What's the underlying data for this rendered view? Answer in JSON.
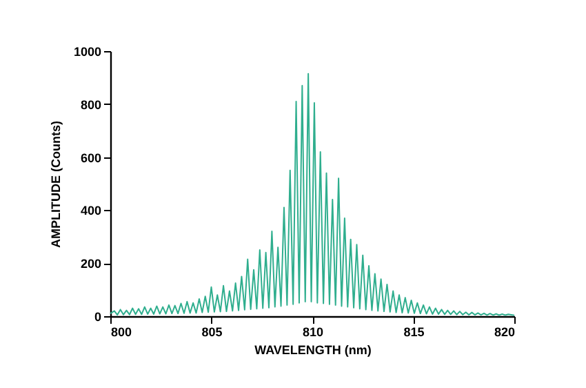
{
  "chart_data": {
    "type": "line",
    "xlabel": "WAVELENGTH (nm)",
    "ylabel": "AMPLITUDE (Counts)",
    "x": [
      800.0,
      800.2,
      800.35,
      800.5,
      800.65,
      800.8,
      800.95,
      801.1,
      801.25,
      801.4,
      801.55,
      801.7,
      801.85,
      802.0,
      802.15,
      802.3,
      802.45,
      802.6,
      802.75,
      802.9,
      803.05,
      803.2,
      803.35,
      803.5,
      803.65,
      803.8,
      803.95,
      804.1,
      804.25,
      804.4,
      804.55,
      804.7,
      804.85,
      805.0,
      805.15,
      805.3,
      805.45,
      805.6,
      805.75,
      805.9,
      806.05,
      806.2,
      806.35,
      806.5,
      806.65,
      806.8,
      806.95,
      807.1,
      807.25,
      807.4,
      807.55,
      807.7,
      807.85,
      808.0,
      808.15,
      808.3,
      808.45,
      808.6,
      808.75,
      808.9,
      809.05,
      809.2,
      809.35,
      809.5,
      809.65,
      809.8,
      809.95,
      810.1,
      810.25,
      810.4,
      810.55,
      810.7,
      810.85,
      811.0,
      811.15,
      811.3,
      811.45,
      811.6,
      811.75,
      811.9,
      812.05,
      812.2,
      812.35,
      812.5,
      812.65,
      812.8,
      812.95,
      813.1,
      813.25,
      813.4,
      813.55,
      813.7,
      813.85,
      814.0,
      814.15,
      814.3,
      814.45,
      814.6,
      814.75,
      814.9,
      815.05,
      815.2,
      815.35,
      815.5,
      815.65,
      815.8,
      815.95,
      816.1,
      816.25,
      816.4,
      816.55,
      816.7,
      816.85,
      817.0,
      817.15,
      817.3,
      817.45,
      817.6,
      817.75,
      817.9,
      818.05,
      818.2,
      818.35,
      818.5,
      818.65,
      818.8,
      818.95,
      819.1,
      819.25,
      819.4,
      819.55,
      819.7,
      820.0
    ],
    "series": [
      {
        "color": "#2fae8e",
        "values": [
          10,
          20,
          5,
          25,
          6,
          22,
          6,
          30,
          7,
          28,
          7,
          35,
          8,
          30,
          8,
          38,
          9,
          35,
          9,
          42,
          10,
          40,
          10,
          48,
          11,
          55,
          12,
          50,
          12,
          65,
          14,
          75,
          15,
          110,
          16,
          80,
          17,
          115,
          18,
          95,
          20,
          125,
          22,
          150,
          24,
          215,
          26,
          175,
          28,
          250,
          30,
          240,
          32,
          320,
          35,
          260,
          38,
          410,
          42,
          550,
          45,
          810,
          50,
          870,
          55,
          915,
          55,
          805,
          50,
          620,
          48,
          540,
          45,
          440,
          42,
          520,
          38,
          370,
          35,
          290,
          32,
          270,
          28,
          230,
          25,
          190,
          22,
          160,
          20,
          140,
          18,
          120,
          16,
          95,
          14,
          80,
          13,
          70,
          12,
          60,
          11,
          50,
          10,
          42,
          9,
          35,
          8,
          30,
          8,
          25,
          7,
          22,
          7,
          20,
          6,
          18,
          6,
          15,
          5,
          14,
          5,
          12,
          5,
          11,
          4,
          10,
          4,
          9,
          4,
          8,
          4,
          7,
          3
        ]
      }
    ],
    "xlim": [
      800,
      820
    ],
    "xticks": [
      800,
      805,
      810,
      815,
      820
    ],
    "ylim": [
      0,
      1000
    ],
    "yticks": [
      0,
      200,
      400,
      600,
      800,
      1000
    ],
    "grid": false,
    "marker": "none",
    "line_style": "solid"
  }
}
